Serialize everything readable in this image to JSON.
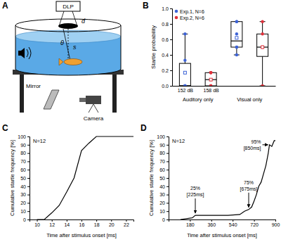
{
  "chart_data": [
    {
      "type": "diagram",
      "panel": "A",
      "labels": {
        "projector": "DLP",
        "disk": "d",
        "angle": "θ",
        "distance": "s",
        "mirror": "Mirror",
        "camera": "Camera"
      }
    },
    {
      "type": "box",
      "panel": "B",
      "y_label": "Startle probability",
      "categories": [
        "152 dB",
        "158 dB",
        null,
        null
      ],
      "group_labels": [
        "Auditory only",
        "Visual only"
      ],
      "ylim": [
        0,
        1
      ],
      "yticks": [
        {
          "value": 0,
          "label": "0.0"
        },
        {
          "value": 0.2,
          "label": "0.2"
        },
        {
          "value": 0.4,
          "label": "0.4"
        },
        {
          "value": 0.6,
          "label": "0.6"
        },
        {
          "value": 0.8,
          "label": "0.8"
        },
        {
          "value": 1,
          "label": "1.0"
        }
      ],
      "legend": "upper left",
      "series": [
        {
          "name": "Exp.1, N=6",
          "color": "#3d63d6",
          "values": [
            {
              "min": 0,
              "q1": 0,
              "median": 0,
              "q3": 0.29,
              "max": 0.67,
              "mean": 0.17,
              "points": [
                0,
                0,
                0,
                0,
                0.33,
                0.67
              ]
            },
            null,
            {
              "min": 0.4,
              "q1": 0.5,
              "median": 0.58,
              "q3": 0.83,
              "max": 0.83,
              "mean": 0.62,
              "points": [
                0.4,
                0.5,
                0.5,
                0.67,
                0.83,
                0.83
              ]
            },
            null
          ]
        },
        {
          "name": "Exp.2, N=6",
          "color": "#e0313b",
          "values": [
            null,
            {
              "min": 0,
              "q1": 0,
              "median": 0.08,
              "q3": 0.17,
              "max": 0.17,
              "mean": 0.08,
              "points": [
                0,
                0,
                0,
                0.17,
                0.17,
                0.17
              ]
            },
            null,
            {
              "min": 0,
              "q1": 0.38,
              "median": 0.5,
              "q3": 0.67,
              "max": 0.83,
              "mean": 0.5,
              "points": [
                0,
                0.5,
                0.5,
                0.5,
                0.67,
                0.83
              ]
            }
          ]
        }
      ]
    },
    {
      "type": "line",
      "panel": "C",
      "x_label": "Time after stimulus onset [ms]",
      "y_label": "Cumulative startle frequency [%]",
      "x": [
        10,
        11,
        12,
        13,
        14,
        15,
        16,
        17,
        18,
        19,
        23
      ],
      "values": [
        0,
        0,
        8,
        17,
        33,
        50,
        83,
        92,
        100,
        100,
        100
      ],
      "color": "#000000",
      "xlim": [
        9,
        23
      ],
      "xticks": [
        10,
        12,
        14,
        16,
        18,
        20,
        22
      ],
      "ylim": [
        0,
        100
      ],
      "yticks": [
        0,
        10,
        20,
        30,
        40,
        50,
        60,
        70,
        80,
        90,
        100
      ],
      "annotations": [
        {
          "text": "N=12"
        }
      ]
    },
    {
      "type": "line",
      "panel": "D",
      "x_label": "Time after stimulus onset [ms]",
      "y_label": "Cumulative startle frequency [%]",
      "x": [
        100,
        200,
        225,
        300,
        400,
        500,
        600,
        640,
        675,
        700,
        720,
        740,
        760,
        780,
        800,
        820,
        840,
        850,
        870,
        890,
        900
      ],
      "values": [
        0,
        2,
        5,
        5,
        5,
        5,
        6,
        10,
        12,
        15,
        22,
        30,
        40,
        45,
        55,
        65,
        80,
        90,
        88,
        95,
        95
      ],
      "color": "#000000",
      "xlim": [
        0,
        900
      ],
      "xticks": [
        180,
        360,
        540,
        720,
        900
      ],
      "ylim": [
        0,
        100
      ],
      "yticks": [
        0,
        10,
        20,
        30,
        40,
        50,
        60,
        70,
        80,
        90,
        100
      ],
      "annotations": [
        {
          "text": "N=12"
        },
        {
          "text": "25%",
          "subtext": "[225ms]",
          "x": 225,
          "y": 5
        },
        {
          "text": "75%",
          "subtext": "[675ms]",
          "x": 675,
          "y": 12
        },
        {
          "text": "95%",
          "subtext": "[850ms]",
          "x": 850,
          "y": 90
        }
      ]
    }
  ]
}
